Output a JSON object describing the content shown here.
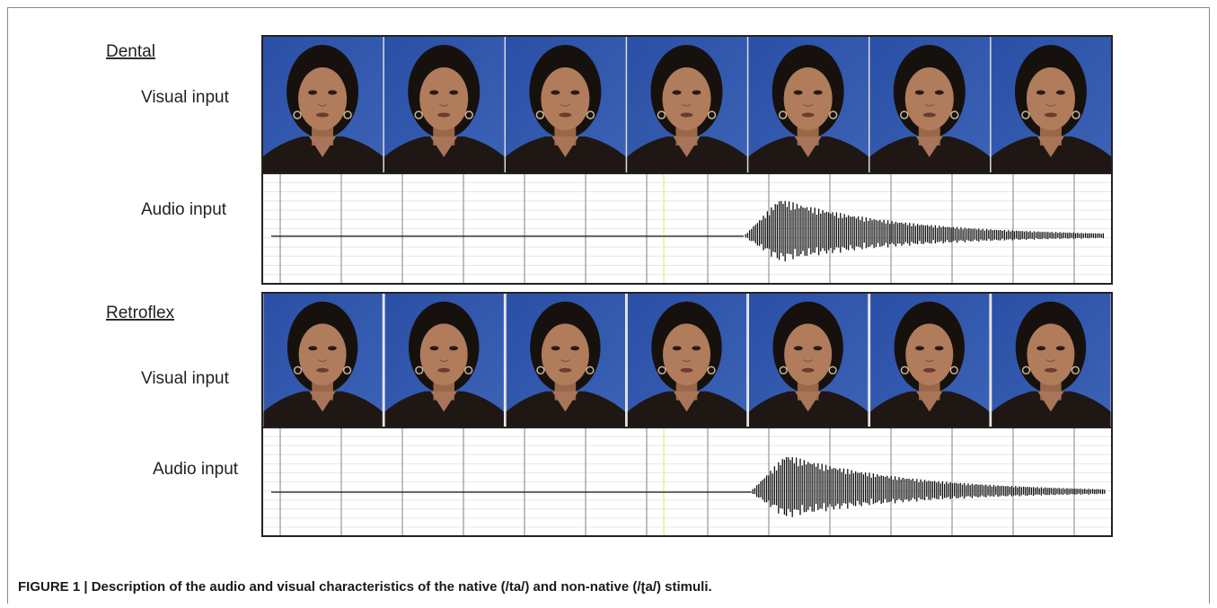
{
  "panels": [
    {
      "title": "Dental",
      "visual_label": "Visual input",
      "audio_label": "Audio input"
    },
    {
      "title": "Retroflex",
      "visual_label": "Visual input",
      "audio_label": "Audio input"
    }
  ],
  "caption": "FIGURE 1 | Description of the audio and visual characteristics of the native (/ta/) and non-native (/ʈa/) stimuli."
}
